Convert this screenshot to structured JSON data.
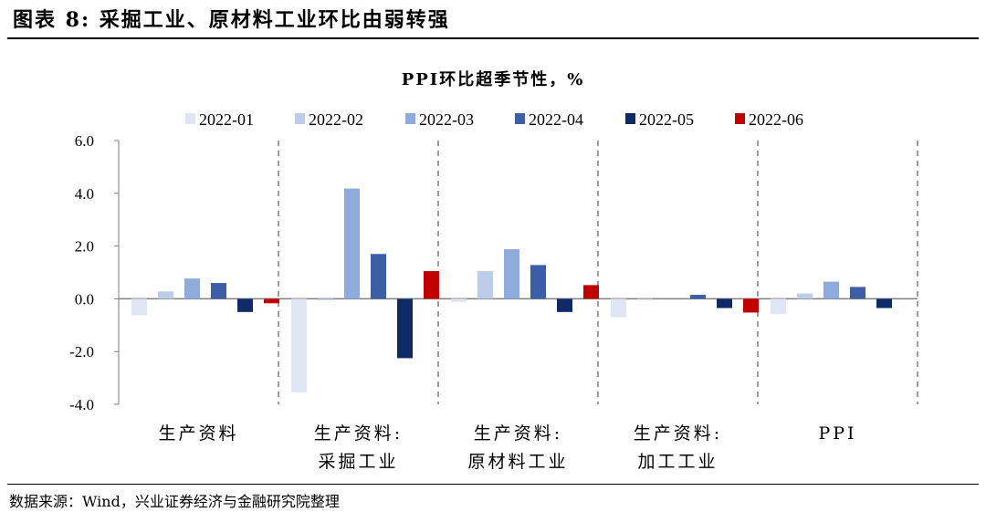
{
  "figure_title": "图表 8: 采掘工业、原材料工业环比由弱转强",
  "source": "数据来源：Wind，兴业证券经济与金融研究院整理",
  "colors": [
    "#dfe6f4",
    "#bccce9",
    "#8fabdb",
    "#3b5ea6",
    "#0f2a66",
    "#c00000"
  ],
  "chart_data": {
    "type": "bar",
    "title": "PPI环比超季节性，%",
    "legend_position": "top",
    "categories": [
      [
        "生产资料"
      ],
      [
        "生产资料:",
        "采掘工业"
      ],
      [
        "生产资料:",
        "原材料工业"
      ],
      [
        "生产资料:",
        "加工工业"
      ],
      [
        "PPI"
      ]
    ],
    "series": [
      {
        "name": "2022-01",
        "values": [
          -0.62,
          -3.55,
          -0.12,
          -0.7,
          -0.58
        ]
      },
      {
        "name": "2022-02",
        "values": [
          0.28,
          -0.05,
          1.05,
          -0.03,
          0.2
        ]
      },
      {
        "name": "2022-03",
        "values": [
          0.77,
          4.18,
          1.88,
          0.0,
          0.65
        ]
      },
      {
        "name": "2022-04",
        "values": [
          0.6,
          1.7,
          1.28,
          0.15,
          0.45
        ]
      },
      {
        "name": "2022-05",
        "values": [
          -0.5,
          -2.25,
          -0.5,
          -0.35,
          -0.35
        ]
      },
      {
        "name": "2022-06",
        "values": [
          -0.17,
          1.05,
          0.52,
          -0.52,
          0.0
        ]
      }
    ],
    "ylim": [
      -4.0,
      6.0
    ],
    "yticks": [
      "6.0",
      "4.0",
      "2.0",
      "0.0",
      "-2.0",
      "-4.0"
    ],
    "xlabel": "",
    "ylabel": ""
  }
}
